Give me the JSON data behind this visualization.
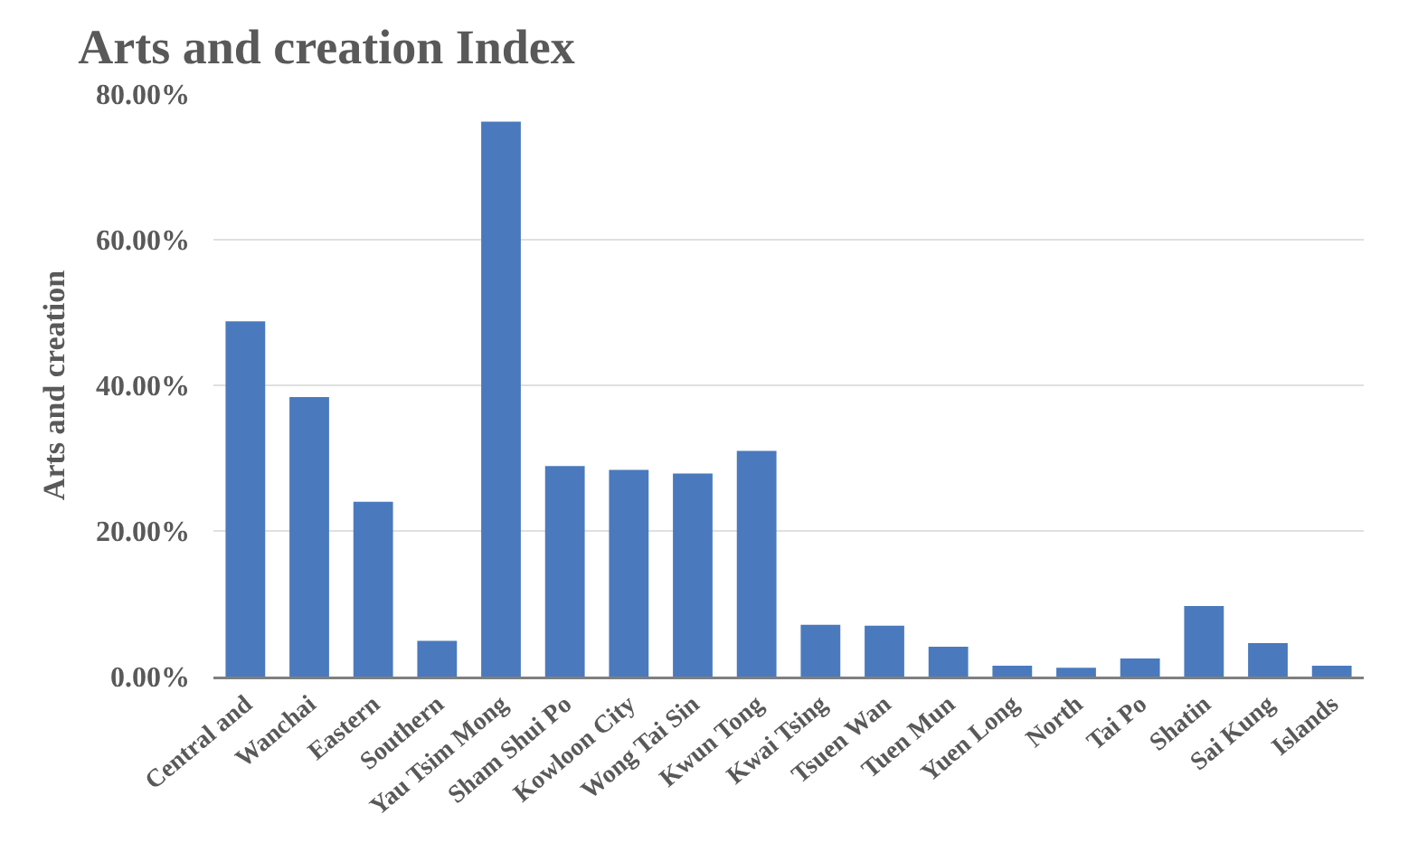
{
  "chart_data": {
    "type": "bar",
    "title": "Arts and creation Index",
    "ylabel": "Arts and creation",
    "categories": [
      "Central and",
      "Wanchai",
      "Eastern",
      "Southern",
      "Yau Tsim Mong",
      "Sham Shui Po",
      "Kowloon City",
      "Wong Tai Sin",
      "Kwun Tong",
      "Kwai Tsing",
      "Tsuen Wan",
      "Tuen Mun",
      "Yuen Long",
      "North",
      "Tai Po",
      "Shatin",
      "Sai Kung",
      "Islands"
    ],
    "values": [
      48.8,
      38.4,
      24.0,
      4.9,
      76.2,
      28.9,
      28.4,
      27.9,
      31.0,
      7.1,
      7.0,
      4.1,
      1.5,
      1.2,
      2.5,
      9.7,
      4.6,
      1.5
    ],
    "color": "#4a7abd",
    "ylim": [
      0,
      80
    ],
    "yticks": [
      {
        "value": 0,
        "label": "0.00%"
      },
      {
        "value": 20,
        "label": "20.00%"
      },
      {
        "value": 40,
        "label": "40.00%"
      },
      {
        "value": 60,
        "label": "60.00%"
      },
      {
        "value": 80,
        "label": "80.00%"
      }
    ],
    "grid": "y",
    "legend": false
  }
}
